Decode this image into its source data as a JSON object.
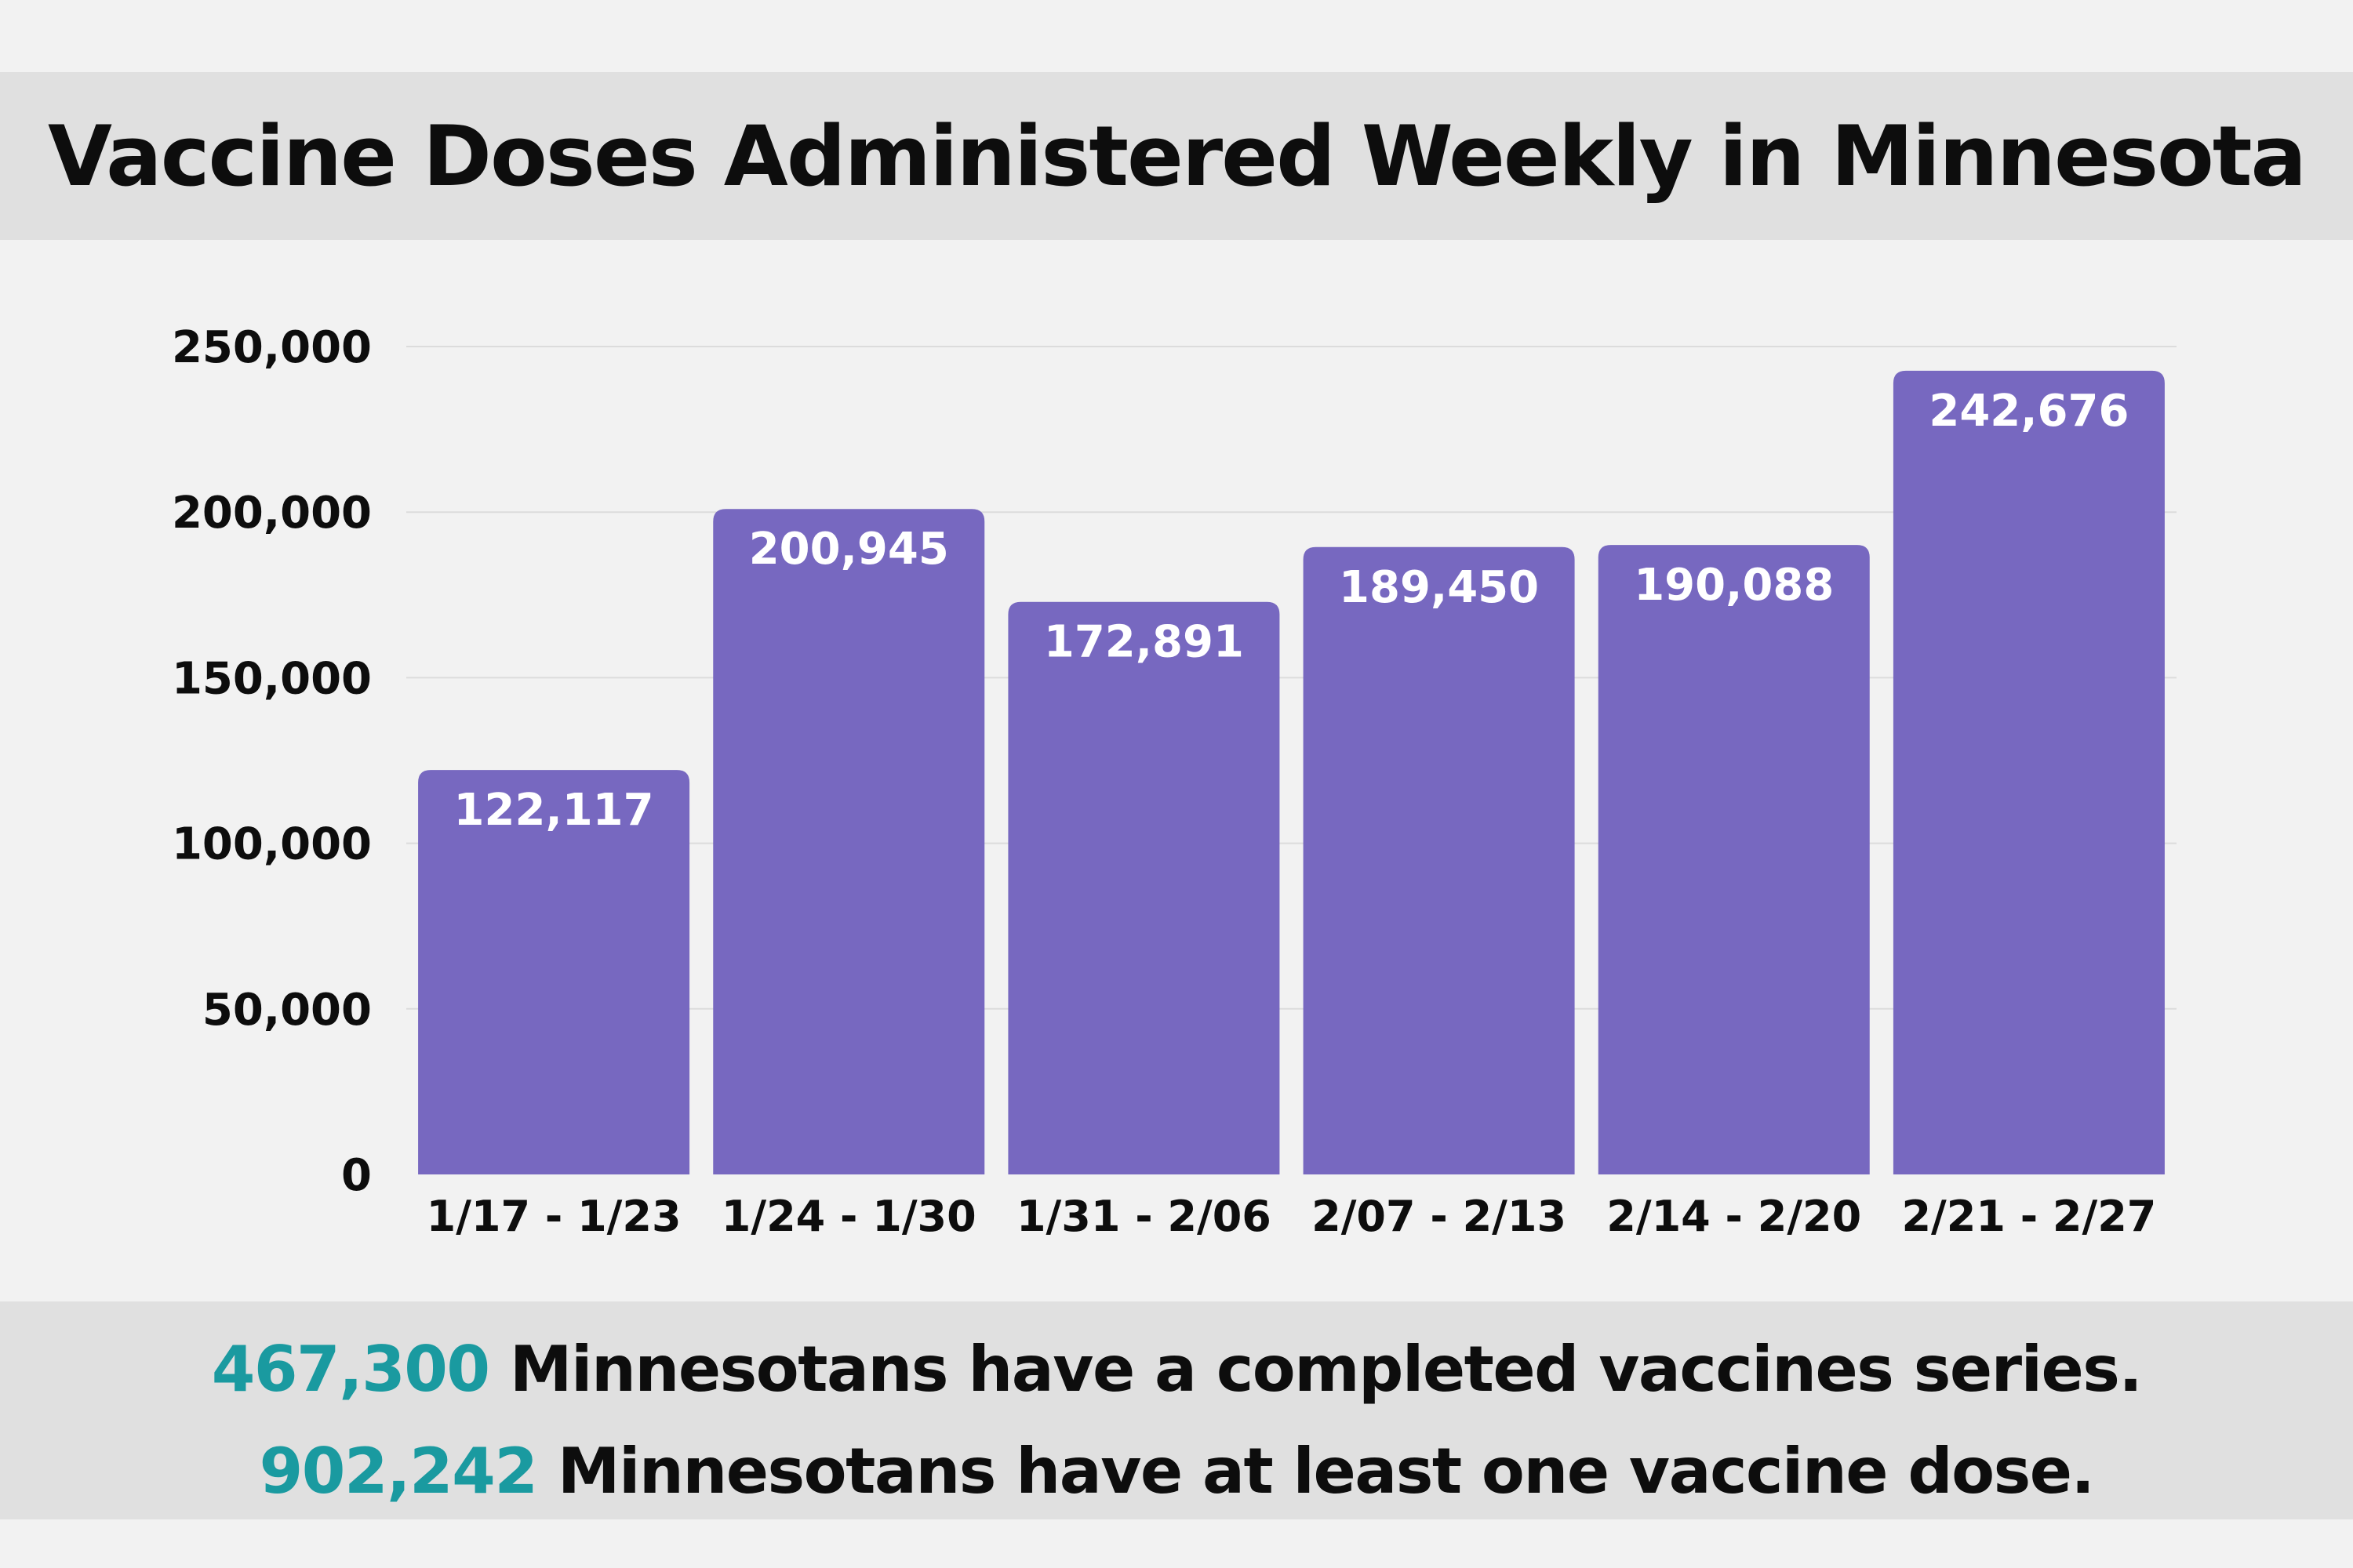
{
  "title": "Vaccine Doses Administered Weekly in Minnesota",
  "colors": {
    "bar": "#7768c0",
    "bar_label": "#ffffff",
    "highlight": "#1a9aa0",
    "text": "#0d0d0d",
    "grid": "#dcdcdc",
    "band": "#e0e0e0",
    "background": "#f2f2f2"
  },
  "chart_data": {
    "type": "bar",
    "categories": [
      "1/17 - 1/23",
      "1/24 - 1/30",
      "1/31 - 2/06",
      "2/07 - 2/13",
      "2/14 - 2/20",
      "2/21 - 2/27"
    ],
    "values": [
      122117,
      200945,
      172891,
      189450,
      190088,
      242676
    ],
    "value_labels": [
      "122,117",
      "200,945",
      "172,891",
      "189,450",
      "190,088",
      "242,676"
    ],
    "y_ticks": [
      0,
      50000,
      100000,
      150000,
      200000,
      250000
    ],
    "y_tick_labels": [
      "0",
      "50,000",
      "100,000",
      "150,000",
      "200,000",
      "250,000"
    ],
    "ylim": [
      0,
      250000
    ],
    "xlabel": "",
    "ylabel": "",
    "grid": true,
    "legend": "none"
  },
  "footer": {
    "line1_number": "467,300",
    "line1_text": " Minnesotans have a completed vaccines series.",
    "line2_number": "902,242",
    "line2_text": " Minnesotans have at least one vaccine dose."
  }
}
